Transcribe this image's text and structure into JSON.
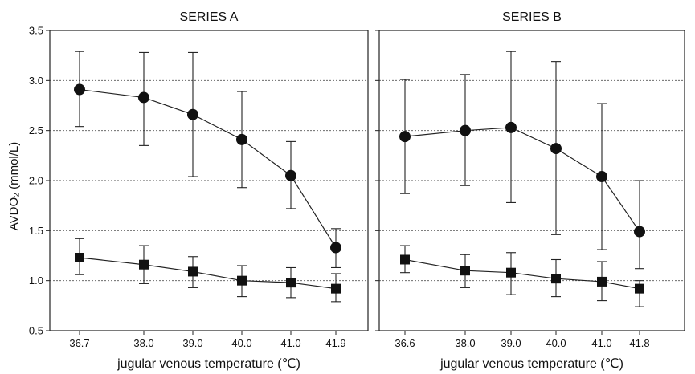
{
  "chart_data": [
    {
      "type": "line",
      "title": "SERIES A",
      "xlabel": "jugular venous temperature (℃)",
      "ylabel": "AVDO₂ (mmol/L)",
      "ylim": [
        0.5,
        3.5
      ],
      "yticks": [
        "0.5",
        "1.0",
        "1.5",
        "2.0",
        "2.5",
        "3.0",
        "3.5"
      ],
      "x": [
        "36.7",
        "38.0",
        "39.0",
        "40.0",
        "41.0",
        "41.9"
      ],
      "grid": "horizontal-dotted",
      "series": [
        {
          "marker": "circle",
          "values": [
            2.91,
            2.83,
            2.66,
            2.41,
            2.05,
            1.33
          ],
          "upper": [
            3.29,
            3.28,
            3.28,
            2.89,
            2.39,
            1.52
          ],
          "lower": [
            2.54,
            2.35,
            2.04,
            1.93,
            1.72,
            1.13
          ]
        },
        {
          "marker": "square",
          "values": [
            1.23,
            1.16,
            1.09,
            1.0,
            0.98,
            0.92
          ],
          "upper": [
            1.42,
            1.35,
            1.24,
            1.15,
            1.13,
            1.07
          ],
          "lower": [
            1.06,
            0.97,
            0.93,
            0.84,
            0.83,
            0.79
          ]
        }
      ]
    },
    {
      "type": "line",
      "title": "SERIES B",
      "xlabel": "jugular venous temperature (℃)",
      "ylabel": "",
      "ylim": [
        0.5,
        3.5
      ],
      "x": [
        "36.6",
        "38.0",
        "39.0",
        "40.0",
        "41.0",
        "41.8"
      ],
      "grid": "horizontal-dotted",
      "series": [
        {
          "marker": "circle",
          "values": [
            2.44,
            2.5,
            2.53,
            2.32,
            2.04,
            1.49
          ],
          "upper": [
            3.01,
            3.06,
            3.29,
            3.19,
            2.77,
            2.0
          ],
          "lower": [
            1.87,
            1.95,
            1.78,
            1.46,
            1.31,
            1.12
          ]
        },
        {
          "marker": "square",
          "values": [
            1.21,
            1.1,
            1.08,
            1.02,
            0.99,
            0.92
          ],
          "upper": [
            1.35,
            1.26,
            1.28,
            1.21,
            1.19,
            1.0
          ],
          "lower": [
            1.08,
            0.93,
            0.86,
            0.84,
            0.8,
            0.74
          ]
        }
      ]
    }
  ]
}
